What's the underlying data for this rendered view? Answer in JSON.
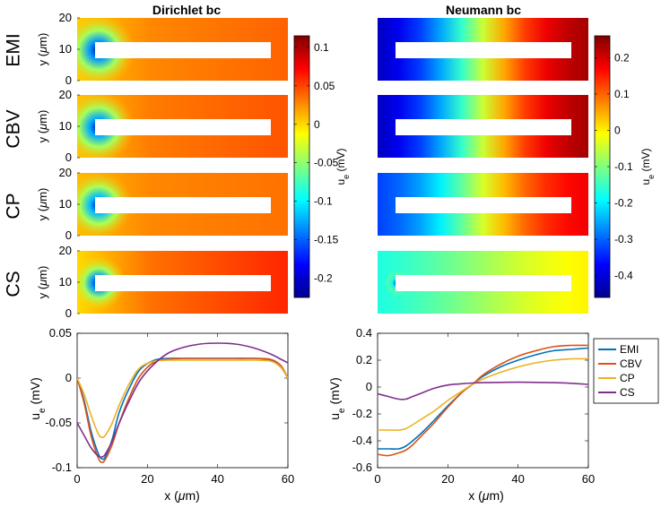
{
  "figure": {
    "columns": [
      {
        "title": "Dirichlet bc",
        "colorbar_label": "u_e (mV)",
        "colorbar_ticks": [
          0.1,
          0.05,
          0,
          -0.05,
          -0.1,
          -0.15,
          -0.2
        ],
        "colorbar_range": [
          -0.225,
          0.115
        ]
      },
      {
        "title": "Neumann bc",
        "colorbar_label": "u_e (mV)",
        "colorbar_ticks": [
          0.2,
          0.1,
          0,
          -0.1,
          -0.2,
          -0.3,
          -0.4
        ],
        "colorbar_range": [
          -0.46,
          0.26
        ]
      }
    ],
    "rows": [
      "EMI",
      "CBV",
      "CP",
      "CS"
    ],
    "heatmap_ylabel": "y (μm)",
    "heatmap_yticks": [
      20,
      10,
      0
    ],
    "colors": {
      "EMI": "#0072BD",
      "CBV": "#D95319",
      "CP": "#EDB120",
      "CS": "#7E2F8E"
    }
  },
  "chart_data": [
    {
      "type": "heatmap",
      "title": "Dirichlet bc",
      "rows": [
        "EMI",
        "CBV",
        "CP",
        "CS"
      ],
      "xrange": [
        0,
        60
      ],
      "yrange": [
        0,
        20
      ],
      "colorbar": {
        "label": "u_e (mV)",
        "range": [
          -0.225,
          0.115
        ],
        "ticks": [
          0.1,
          0.05,
          0,
          -0.05,
          -0.1,
          -0.15,
          -0.2
        ]
      },
      "sink_value": -0.22,
      "far_value": 0.04
    },
    {
      "type": "heatmap",
      "title": "Neumann bc",
      "rows": [
        "EMI",
        "CBV",
        "CP",
        "CS"
      ],
      "xrange": [
        0,
        60
      ],
      "yrange": [
        0,
        20
      ],
      "colorbar": {
        "label": "u_e (mV)",
        "range": [
          -0.46,
          0.26
        ],
        "ticks": [
          0.2,
          0.1,
          0,
          -0.1,
          -0.2,
          -0.3,
          -0.4
        ]
      },
      "left_values": [
        -0.46,
        -0.46,
        -0.36,
        -0.2
      ],
      "right_values": [
        0.26,
        0.26,
        0.2,
        0.02
      ]
    },
    {
      "type": "line",
      "xlabel": "x (μm)",
      "ylabel": "u_e (mV)",
      "xlim": [
        0,
        60
      ],
      "ylim": [
        -0.1,
        0.05
      ],
      "xticks": [
        0,
        20,
        40,
        60
      ],
      "yticks": [
        0.05,
        0,
        -0.05,
        -0.1
      ],
      "series": [
        {
          "name": "EMI",
          "x": [
            0,
            2,
            4,
            6,
            7,
            8,
            10,
            12,
            15,
            18,
            22,
            26,
            30,
            35,
            40,
            45,
            50,
            55,
            58,
            60
          ],
          "y": [
            0,
            -0.025,
            -0.06,
            -0.084,
            -0.09,
            -0.088,
            -0.068,
            -0.038,
            -0.01,
            0.01,
            0.02,
            0.022,
            0.022,
            0.022,
            0.022,
            0.022,
            0.022,
            0.02,
            0.012,
            0
          ]
        },
        {
          "name": "CBV",
          "x": [
            0,
            2,
            4,
            6,
            7,
            8,
            10,
            12,
            15,
            18,
            22,
            26,
            30,
            35,
            40,
            45,
            50,
            55,
            58,
            60
          ],
          "y": [
            0,
            -0.028,
            -0.065,
            -0.089,
            -0.094,
            -0.091,
            -0.074,
            -0.05,
            -0.02,
            0.003,
            0.018,
            0.021,
            0.022,
            0.022,
            0.022,
            0.022,
            0.022,
            0.021,
            0.014,
            0
          ]
        },
        {
          "name": "CP",
          "x": [
            0,
            2,
            4,
            6,
            7,
            8,
            10,
            12,
            15,
            18,
            22,
            26,
            30,
            35,
            40,
            45,
            50,
            55,
            58,
            60
          ],
          "y": [
            0,
            -0.018,
            -0.042,
            -0.062,
            -0.066,
            -0.064,
            -0.05,
            -0.03,
            -0.005,
            0.012,
            0.019,
            0.02,
            0.02,
            0.02,
            0.02,
            0.02,
            0.02,
            0.019,
            0.012,
            0
          ]
        },
        {
          "name": "CS",
          "x": [
            0,
            2,
            4,
            6,
            7,
            8,
            10,
            12,
            15,
            18,
            22,
            26,
            30,
            35,
            40,
            45,
            50,
            55,
            58,
            60
          ],
          "y": [
            -0.05,
            -0.064,
            -0.078,
            -0.087,
            -0.088,
            -0.085,
            -0.07,
            -0.05,
            -0.024,
            -0.002,
            0.016,
            0.028,
            0.034,
            0.038,
            0.039,
            0.038,
            0.034,
            0.027,
            0.021,
            0.017
          ]
        }
      ]
    },
    {
      "type": "line",
      "xlabel": "x (μm)",
      "ylabel": "u_e (mV)",
      "xlim": [
        0,
        60
      ],
      "ylim": [
        -0.6,
        0.4
      ],
      "xticks": [
        0,
        20,
        40,
        60
      ],
      "yticks": [
        0.4,
        0.2,
        0,
        -0.2,
        -0.4,
        -0.6
      ],
      "legend": {
        "position": "right",
        "entries": [
          "EMI",
          "CBV",
          "CP",
          "CS"
        ]
      },
      "series": [
        {
          "name": "EMI",
          "x": [
            0,
            3,
            6,
            8,
            10,
            13,
            16,
            20,
            24,
            27,
            30,
            35,
            40,
            45,
            50,
            55,
            60
          ],
          "y": [
            -0.46,
            -0.46,
            -0.46,
            -0.44,
            -0.4,
            -0.33,
            -0.25,
            -0.14,
            -0.04,
            0.02,
            0.08,
            0.15,
            0.2,
            0.24,
            0.27,
            0.28,
            0.29
          ]
        },
        {
          "name": "CBV",
          "x": [
            0,
            3,
            6,
            8,
            10,
            13,
            16,
            20,
            24,
            27,
            30,
            35,
            40,
            45,
            50,
            55,
            60
          ],
          "y": [
            -0.5,
            -0.51,
            -0.49,
            -0.47,
            -0.43,
            -0.35,
            -0.27,
            -0.15,
            -0.04,
            0.02,
            0.09,
            0.17,
            0.23,
            0.27,
            0.3,
            0.31,
            0.31
          ]
        },
        {
          "name": "CP",
          "x": [
            0,
            3,
            6,
            8,
            10,
            13,
            16,
            20,
            24,
            27,
            30,
            35,
            40,
            45,
            50,
            55,
            60
          ],
          "y": [
            -0.32,
            -0.32,
            -0.32,
            -0.31,
            -0.28,
            -0.23,
            -0.18,
            -0.1,
            -0.03,
            0.02,
            0.06,
            0.11,
            0.15,
            0.18,
            0.2,
            0.21,
            0.21
          ]
        },
        {
          "name": "CS",
          "x": [
            0,
            3,
            6,
            8,
            10,
            13,
            16,
            20,
            24,
            27,
            30,
            35,
            40,
            45,
            50,
            55,
            60
          ],
          "y": [
            -0.05,
            -0.07,
            -0.09,
            -0.09,
            -0.07,
            -0.04,
            -0.01,
            0.015,
            0.025,
            0.03,
            0.033,
            0.035,
            0.036,
            0.035,
            0.033,
            0.028,
            0.02
          ]
        }
      ]
    }
  ]
}
